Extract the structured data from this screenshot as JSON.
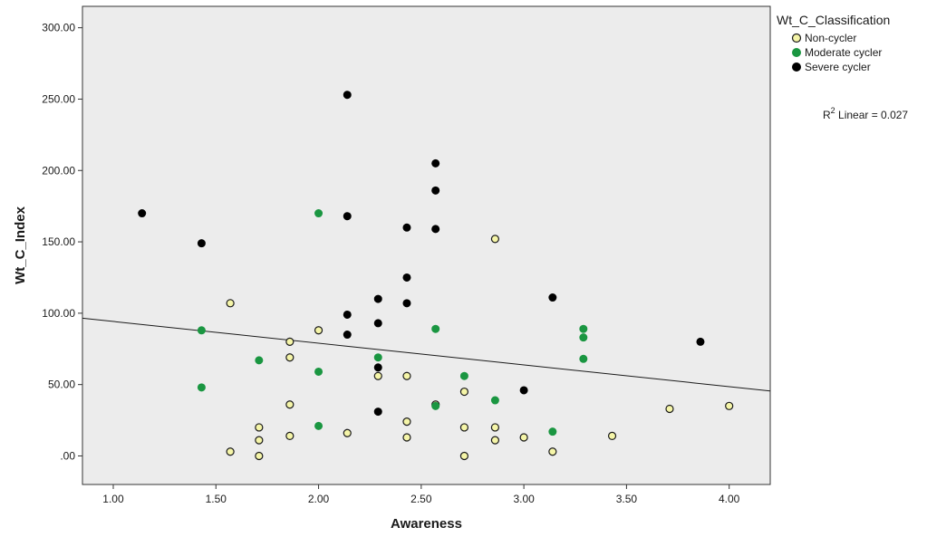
{
  "chart_data": {
    "type": "scatter",
    "xlabel": "Awareness",
    "ylabel": "Wt_C_Index",
    "xlim": [
      0.85,
      4.2
    ],
    "ylim": [
      -20,
      315
    ],
    "xticks": [
      "1.00",
      "1.50",
      "2.00",
      "2.50",
      "3.00",
      "3.50",
      "4.00"
    ],
    "xtick_values": [
      1.0,
      1.5,
      2.0,
      2.5,
      3.0,
      3.5,
      4.0
    ],
    "yticks": [
      ".00",
      "50.00",
      "100.00",
      "150.00",
      "200.00",
      "250.00",
      "300.00"
    ],
    "ytick_values": [
      0,
      50,
      100,
      150,
      200,
      250,
      300
    ],
    "grid": false,
    "legend": {
      "title": "Wt_C_Classification",
      "placement": "top-right, outside plot"
    },
    "series": [
      {
        "name": "Non-cycler",
        "color": "#f5f5a8",
        "stroke": "#1a1a1a",
        "points": [
          [
            1.57,
            107
          ],
          [
            1.57,
            3
          ],
          [
            1.71,
            20
          ],
          [
            1.71,
            11
          ],
          [
            1.71,
            0
          ],
          [
            1.86,
            80
          ],
          [
            1.86,
            69
          ],
          [
            1.86,
            36
          ],
          [
            1.86,
            14
          ],
          [
            2.0,
            88
          ],
          [
            2.14,
            16
          ],
          [
            2.29,
            56
          ],
          [
            2.43,
            56
          ],
          [
            2.43,
            24
          ],
          [
            2.43,
            13
          ],
          [
            2.57,
            36
          ],
          [
            2.71,
            45
          ],
          [
            2.71,
            20
          ],
          [
            2.71,
            0
          ],
          [
            2.86,
            152
          ],
          [
            2.86,
            20
          ],
          [
            2.86,
            11
          ],
          [
            3.0,
            13
          ],
          [
            3.14,
            3
          ],
          [
            3.43,
            14
          ],
          [
            3.71,
            33
          ],
          [
            4.0,
            35
          ]
        ]
      },
      {
        "name": "Moderate cycler",
        "color": "#1a9641",
        "stroke": "#1a9641",
        "points": [
          [
            1.43,
            88
          ],
          [
            1.43,
            48
          ],
          [
            1.71,
            67
          ],
          [
            2.0,
            170
          ],
          [
            2.0,
            59
          ],
          [
            2.0,
            21
          ],
          [
            2.29,
            69
          ],
          [
            2.57,
            89
          ],
          [
            2.57,
            35
          ],
          [
            2.71,
            56
          ],
          [
            2.86,
            39
          ],
          [
            3.14,
            17
          ],
          [
            3.29,
            89
          ],
          [
            3.29,
            83
          ],
          [
            3.29,
            68
          ]
        ]
      },
      {
        "name": "Severe cycler",
        "color": "#000000",
        "stroke": "#000000",
        "points": [
          [
            1.14,
            170
          ],
          [
            1.43,
            149
          ],
          [
            2.14,
            253
          ],
          [
            2.14,
            168
          ],
          [
            2.14,
            99
          ],
          [
            2.14,
            85
          ],
          [
            2.29,
            110
          ],
          [
            2.29,
            93
          ],
          [
            2.29,
            62
          ],
          [
            2.29,
            31
          ],
          [
            2.43,
            160
          ],
          [
            2.43,
            125
          ],
          [
            2.43,
            107
          ],
          [
            2.57,
            205
          ],
          [
            2.57,
            186
          ],
          [
            2.57,
            159
          ],
          [
            3.0,
            46
          ],
          [
            3.14,
            111
          ],
          [
            3.86,
            80
          ]
        ]
      }
    ],
    "fit_line": {
      "type": "linear",
      "label_prefix": "R",
      "label_sup": "2",
      "label_suffix": " Linear = 0.027",
      "x": [
        0.85,
        4.2
      ],
      "y": [
        96.5,
        45.5
      ]
    },
    "colors": {
      "plot_background": "#ececec",
      "axis": "#333333",
      "fit_line": "#1a1a1a"
    }
  }
}
